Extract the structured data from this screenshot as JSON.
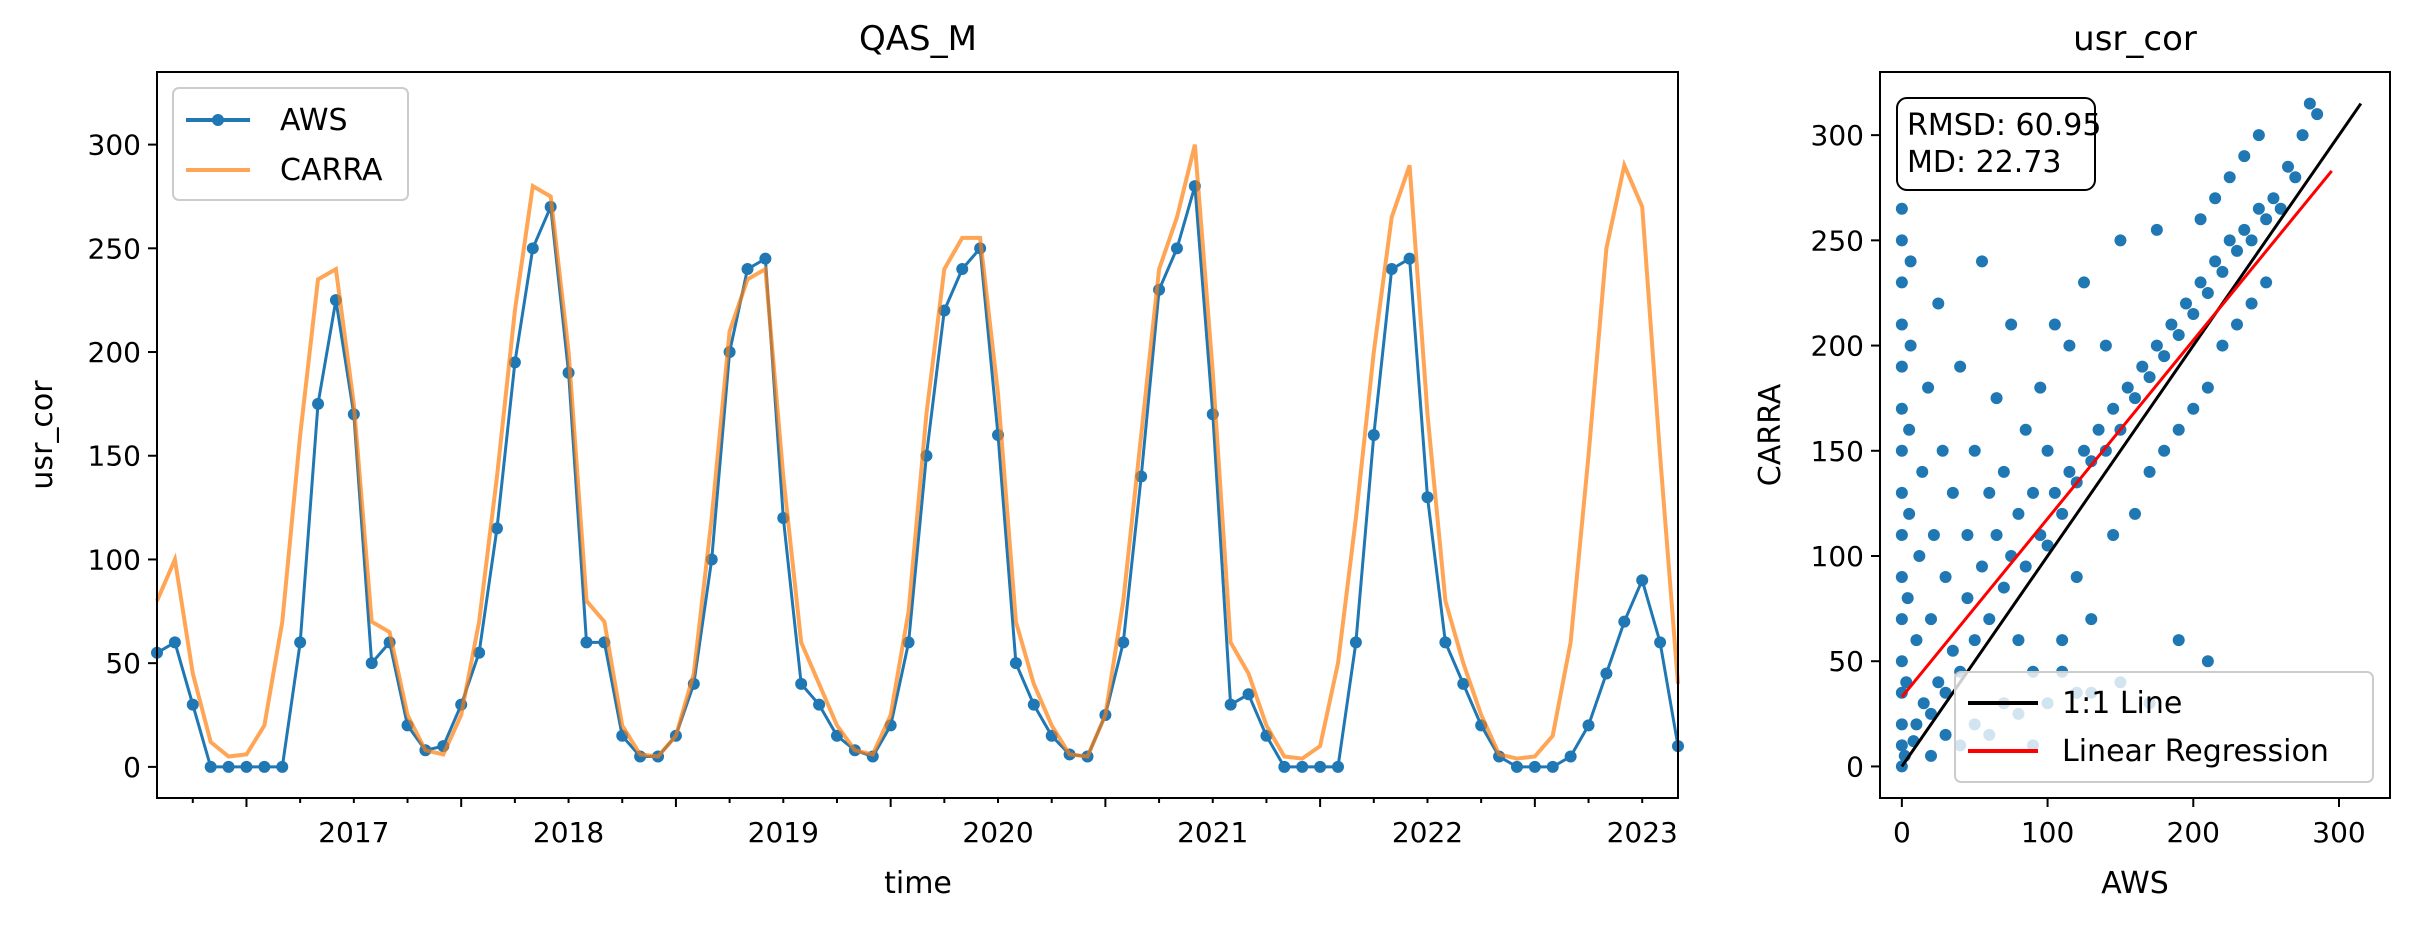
{
  "chart_data": [
    {
      "type": "line",
      "title": "QAS_M",
      "xlabel": "time",
      "ylabel": "usr_cor",
      "x_ticks": [
        "2017",
        "2018",
        "2019",
        "2020",
        "2021",
        "2022",
        "2023"
      ],
      "y_ticks": [
        "0",
        "50",
        "100",
        "150",
        "200",
        "250",
        "300"
      ],
      "xlim": [
        "2016-08",
        "2023-09"
      ],
      "ylim": [
        -15,
        335
      ],
      "legend_position": "top-left",
      "series": [
        {
          "name": "AWS",
          "color": "#1f77b4",
          "marker": "circle",
          "x": [
            "2016-08",
            "2016-09",
            "2016-10",
            "2016-11",
            "2016-12",
            "2017-01",
            "2017-02",
            "2017-03",
            "2017-04",
            "2017-05",
            "2017-06",
            "2017-07",
            "2017-08",
            "2017-09",
            "2017-10",
            "2017-11",
            "2017-12",
            "2018-01",
            "2018-02",
            "2018-03",
            "2018-04",
            "2018-05",
            "2018-06",
            "2018-07",
            "2018-08",
            "2018-09",
            "2018-10",
            "2018-11",
            "2018-12",
            "2019-01",
            "2019-02",
            "2019-03",
            "2019-04",
            "2019-05",
            "2019-06",
            "2019-07",
            "2019-08",
            "2019-09",
            "2019-10",
            "2019-11",
            "2019-12",
            "2020-01",
            "2020-02",
            "2020-03",
            "2020-04",
            "2020-05",
            "2020-06",
            "2020-07",
            "2020-08",
            "2020-09",
            "2020-10",
            "2020-11",
            "2020-12",
            "2021-01",
            "2021-02",
            "2021-03",
            "2021-04",
            "2021-05",
            "2021-06",
            "2021-07",
            "2021-08",
            "2021-09",
            "2021-10",
            "2021-11",
            "2021-12",
            "2022-01",
            "2022-02",
            "2022-03",
            "2022-04",
            "2022-05",
            "2022-06",
            "2022-07",
            "2022-08",
            "2022-09",
            "2022-10",
            "2022-11",
            "2022-12",
            "2023-01",
            "2023-02",
            "2023-03",
            "2023-04",
            "2023-05",
            "2023-06",
            "2023-07",
            "2023-08",
            "2023-09"
          ],
          "values": [
            55,
            60,
            30,
            0,
            0,
            0,
            0,
            0,
            60,
            175,
            225,
            170,
            50,
            60,
            20,
            8,
            10,
            30,
            55,
            115,
            195,
            250,
            270,
            190,
            60,
            60,
            15,
            5,
            5,
            15,
            40,
            100,
            200,
            240,
            245,
            120,
            40,
            30,
            15,
            8,
            5,
            20,
            60,
            150,
            220,
            240,
            250,
            160,
            50,
            30,
            15,
            6,
            5,
            25,
            60,
            140,
            230,
            250,
            280,
            170,
            30,
            35,
            15,
            0,
            0,
            0,
            0,
            60,
            160,
            240,
            245,
            130,
            60,
            40,
            20,
            5,
            0,
            0,
            0,
            5,
            20,
            45,
            70,
            90,
            60,
            10
          ]
        },
        {
          "name": "CARRA",
          "color": "#ff7f0e",
          "opacity": 0.7,
          "x": [
            "2016-08",
            "2016-09",
            "2016-10",
            "2016-11",
            "2016-12",
            "2017-01",
            "2017-02",
            "2017-03",
            "2017-04",
            "2017-05",
            "2017-06",
            "2017-07",
            "2017-08",
            "2017-09",
            "2017-10",
            "2017-11",
            "2017-12",
            "2018-01",
            "2018-02",
            "2018-03",
            "2018-04",
            "2018-05",
            "2018-06",
            "2018-07",
            "2018-08",
            "2018-09",
            "2018-10",
            "2018-11",
            "2018-12",
            "2019-01",
            "2019-02",
            "2019-03",
            "2019-04",
            "2019-05",
            "2019-06",
            "2019-07",
            "2019-08",
            "2019-09",
            "2019-10",
            "2019-11",
            "2019-12",
            "2020-01",
            "2020-02",
            "2020-03",
            "2020-04",
            "2020-05",
            "2020-06",
            "2020-07",
            "2020-08",
            "2020-09",
            "2020-10",
            "2020-11",
            "2020-12",
            "2021-01",
            "2021-02",
            "2021-03",
            "2021-04",
            "2021-05",
            "2021-06",
            "2021-07",
            "2021-08",
            "2021-09",
            "2021-10",
            "2021-11",
            "2021-12",
            "2022-01",
            "2022-02",
            "2022-03",
            "2022-04",
            "2022-05",
            "2022-06",
            "2022-07",
            "2022-08",
            "2022-09",
            "2022-10",
            "2022-11",
            "2022-12",
            "2023-01",
            "2023-02",
            "2023-03",
            "2023-04",
            "2023-05",
            "2023-06",
            "2023-07",
            "2023-08",
            "2023-09"
          ],
          "values": [
            80,
            100,
            45,
            12,
            5,
            6,
            20,
            70,
            160,
            235,
            240,
            175,
            70,
            65,
            25,
            8,
            6,
            25,
            70,
            140,
            220,
            280,
            275,
            200,
            80,
            70,
            20,
            6,
            5,
            15,
            45,
            120,
            210,
            235,
            240,
            140,
            60,
            40,
            20,
            8,
            6,
            25,
            75,
            170,
            240,
            255,
            255,
            180,
            70,
            40,
            20,
            6,
            5,
            25,
            80,
            160,
            240,
            265,
            300,
            190,
            60,
            45,
            20,
            5,
            4,
            10,
            50,
            120,
            200,
            265,
            290,
            170,
            80,
            50,
            25,
            6,
            4,
            5,
            15,
            60,
            150,
            250,
            290,
            270,
            150,
            40
          ]
        }
      ]
    },
    {
      "type": "scatter",
      "title": "usr_cor",
      "xlabel": "AWS",
      "ylabel": "CARRA",
      "x_ticks": [
        "0",
        "100",
        "200",
        "300"
      ],
      "y_ticks": [
        "0",
        "50",
        "100",
        "150",
        "200",
        "250",
        "300"
      ],
      "xlim": [
        -15,
        335
      ],
      "ylim": [
        -15,
        330
      ],
      "legend_position": "lower-right",
      "stats_text": [
        "RMSD: 60.95",
        "MD: 22.73"
      ],
      "points_color": "#1f77b4",
      "lines": [
        {
          "name": "1:1 Line",
          "color": "#000000",
          "x": [
            0,
            315
          ],
          "y": [
            0,
            315
          ]
        },
        {
          "name": "Linear Regression",
          "color": "#ff0000",
          "x": [
            0,
            295
          ],
          "y": [
            33,
            283
          ]
        }
      ],
      "points": [
        [
          0,
          0
        ],
        [
          0,
          10
        ],
        [
          0,
          20
        ],
        [
          0,
          35
        ],
        [
          0,
          50
        ],
        [
          0,
          70
        ],
        [
          0,
          90
        ],
        [
          0,
          110
        ],
        [
          0,
          130
        ],
        [
          0,
          150
        ],
        [
          0,
          170
        ],
        [
          0,
          190
        ],
        [
          0,
          210
        ],
        [
          0,
          230
        ],
        [
          0,
          250
        ],
        [
          0,
          265
        ],
        [
          2,
          5
        ],
        [
          3,
          40
        ],
        [
          4,
          80
        ],
        [
          5,
          120
        ],
        [
          5,
          160
        ],
        [
          6,
          200
        ],
        [
          6,
          240
        ],
        [
          8,
          12
        ],
        [
          10,
          20
        ],
        [
          10,
          60
        ],
        [
          12,
          100
        ],
        [
          14,
          140
        ],
        [
          15,
          30
        ],
        [
          18,
          180
        ],
        [
          20,
          25
        ],
        [
          20,
          70
        ],
        [
          22,
          110
        ],
        [
          25,
          40
        ],
        [
          25,
          220
        ],
        [
          28,
          150
        ],
        [
          30,
          35
        ],
        [
          30,
          90
        ],
        [
          35,
          55
        ],
        [
          35,
          130
        ],
        [
          40,
          45
        ],
        [
          40,
          190
        ],
        [
          45,
          80
        ],
        [
          45,
          110
        ],
        [
          50,
          60
        ],
        [
          50,
          150
        ],
        [
          55,
          95
        ],
        [
          55,
          240
        ],
        [
          60,
          70
        ],
        [
          60,
          130
        ],
        [
          65,
          110
        ],
        [
          65,
          175
        ],
        [
          70,
          85
        ],
        [
          70,
          140
        ],
        [
          75,
          100
        ],
        [
          75,
          210
        ],
        [
          80,
          120
        ],
        [
          80,
          60
        ],
        [
          85,
          95
        ],
        [
          85,
          160
        ],
        [
          90,
          130
        ],
        [
          90,
          45
        ],
        [
          95,
          110
        ],
        [
          95,
          180
        ],
        [
          100,
          105
        ],
        [
          100,
          150
        ],
        [
          105,
          130
        ],
        [
          105,
          210
        ],
        [
          110,
          120
        ],
        [
          110,
          60
        ],
        [
          115,
          140
        ],
        [
          115,
          200
        ],
        [
          120,
          135
        ],
        [
          120,
          90
        ],
        [
          125,
          150
        ],
        [
          125,
          230
        ],
        [
          130,
          145
        ],
        [
          130,
          70
        ],
        [
          135,
          160
        ],
        [
          140,
          150
        ],
        [
          140,
          200
        ],
        [
          145,
          170
        ],
        [
          145,
          110
        ],
        [
          150,
          160
        ],
        [
          150,
          250
        ],
        [
          155,
          180
        ],
        [
          160,
          175
        ],
        [
          160,
          120
        ],
        [
          165,
          190
        ],
        [
          170,
          185
        ],
        [
          170,
          140
        ],
        [
          175,
          200
        ],
        [
          175,
          255
        ],
        [
          180,
          195
        ],
        [
          180,
          150
        ],
        [
          185,
          210
        ],
        [
          190,
          205
        ],
        [
          190,
          160
        ],
        [
          195,
          220
        ],
        [
          200,
          215
        ],
        [
          200,
          170
        ],
        [
          205,
          230
        ],
        [
          205,
          260
        ],
        [
          210,
          225
        ],
        [
          210,
          180
        ],
        [
          215,
          240
        ],
        [
          215,
          270
        ],
        [
          220,
          235
        ],
        [
          220,
          200
        ],
        [
          225,
          250
        ],
        [
          225,
          280
        ],
        [
          230,
          245
        ],
        [
          230,
          210
        ],
        [
          235,
          255
        ],
        [
          235,
          290
        ],
        [
          240,
          250
        ],
        [
          240,
          220
        ],
        [
          245,
          265
        ],
        [
          245,
          300
        ],
        [
          250,
          260
        ],
        [
          250,
          230
        ],
        [
          255,
          270
        ],
        [
          260,
          265
        ],
        [
          265,
          285
        ],
        [
          270,
          280
        ],
        [
          275,
          300
        ],
        [
          280,
          315
        ],
        [
          285,
          310
        ],
        [
          20,
          5
        ],
        [
          40,
          10
        ],
        [
          60,
          15
        ],
        [
          80,
          25
        ],
        [
          100,
          30
        ],
        [
          120,
          35
        ],
        [
          30,
          15
        ],
        [
          50,
          20
        ],
        [
          70,
          30
        ],
        [
          90,
          10
        ],
        [
          110,
          45
        ],
        [
          130,
          35
        ],
        [
          150,
          40
        ],
        [
          170,
          30
        ],
        [
          190,
          60
        ],
        [
          210,
          50
        ]
      ]
    }
  ]
}
